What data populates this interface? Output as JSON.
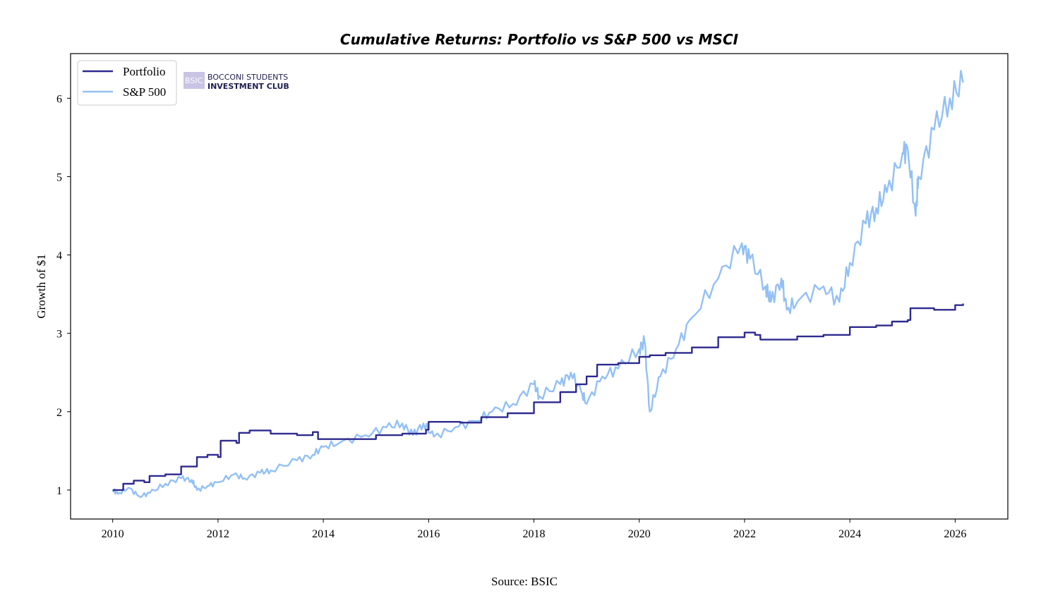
{
  "chart_data": {
    "type": "line",
    "title": "Cumulative Returns: Portfolio vs S&P 500 vs MSCI",
    "xlabel": "",
    "ylabel": "Growth of $1",
    "source": "Source: BSIC",
    "xlim": [
      2009.2,
      2027.0
    ],
    "ylim": [
      0.63,
      6.57
    ],
    "xticks": [
      2010,
      2012,
      2014,
      2016,
      2018,
      2020,
      2022,
      2024,
      2026
    ],
    "yticks": [
      1,
      2,
      3,
      4,
      5,
      6
    ],
    "grid": false,
    "legend_position": "top-left",
    "watermark": "BSIC BOCCONI STUDENTS INVESTMENT CLUB",
    "series": [
      {
        "name": "Portfolio",
        "color": "#2e2a8f",
        "step": true,
        "points": [
          [
            2010.0,
            1.0
          ],
          [
            2010.2,
            1.08
          ],
          [
            2010.4,
            1.12
          ],
          [
            2010.6,
            1.1
          ],
          [
            2010.7,
            1.18
          ],
          [
            2011.0,
            1.2
          ],
          [
            2011.3,
            1.3
          ],
          [
            2011.6,
            1.42
          ],
          [
            2011.8,
            1.45
          ],
          [
            2012.0,
            1.42
          ],
          [
            2012.05,
            1.63
          ],
          [
            2012.35,
            1.6
          ],
          [
            2012.4,
            1.73
          ],
          [
            2012.6,
            1.76
          ],
          [
            2013.0,
            1.72
          ],
          [
            2013.5,
            1.7
          ],
          [
            2013.8,
            1.74
          ],
          [
            2013.9,
            1.65
          ],
          [
            2014.5,
            1.65
          ],
          [
            2015.0,
            1.7
          ],
          [
            2015.5,
            1.72
          ],
          [
            2015.95,
            1.77
          ],
          [
            2016.0,
            1.87
          ],
          [
            2016.6,
            1.86
          ],
          [
            2017.0,
            1.93
          ],
          [
            2017.5,
            1.98
          ],
          [
            2018.0,
            2.12
          ],
          [
            2018.5,
            2.25
          ],
          [
            2018.8,
            2.35
          ],
          [
            2019.0,
            2.45
          ],
          [
            2019.2,
            2.6
          ],
          [
            2019.6,
            2.62
          ],
          [
            2020.0,
            2.7
          ],
          [
            2020.2,
            2.72
          ],
          [
            2020.5,
            2.75
          ],
          [
            2021.0,
            2.82
          ],
          [
            2021.5,
            2.95
          ],
          [
            2022.0,
            3.01
          ],
          [
            2022.2,
            2.98
          ],
          [
            2022.3,
            2.92
          ],
          [
            2023.0,
            2.96
          ],
          [
            2023.5,
            2.98
          ],
          [
            2024.0,
            3.08
          ],
          [
            2024.5,
            3.1
          ],
          [
            2024.8,
            3.15
          ],
          [
            2025.1,
            3.17
          ],
          [
            2025.15,
            3.32
          ],
          [
            2025.6,
            3.3
          ],
          [
            2026.0,
            3.36
          ],
          [
            2026.15,
            3.38
          ]
        ]
      },
      {
        "name": "S&P 500",
        "color": "#93c0f5",
        "step": false,
        "points": [
          [
            2010.0,
            1.0
          ],
          [
            2010.1,
            0.95
          ],
          [
            2010.3,
            1.03
          ],
          [
            2010.5,
            0.92
          ],
          [
            2010.7,
            0.96
          ],
          [
            2011.0,
            1.08
          ],
          [
            2011.3,
            1.15
          ],
          [
            2011.5,
            1.13
          ],
          [
            2011.6,
            1.0
          ],
          [
            2011.8,
            1.05
          ],
          [
            2012.0,
            1.1
          ],
          [
            2012.3,
            1.2
          ],
          [
            2012.5,
            1.15
          ],
          [
            2012.8,
            1.22
          ],
          [
            2013.0,
            1.25
          ],
          [
            2013.5,
            1.38
          ],
          [
            2013.8,
            1.45
          ],
          [
            2014.0,
            1.55
          ],
          [
            2014.3,
            1.6
          ],
          [
            2014.8,
            1.7
          ],
          [
            2015.2,
            1.8
          ],
          [
            2015.5,
            1.85
          ],
          [
            2015.7,
            1.7
          ],
          [
            2015.9,
            1.85
          ],
          [
            2016.1,
            1.68
          ],
          [
            2016.5,
            1.8
          ],
          [
            2016.9,
            1.88
          ],
          [
            2017.2,
            2.0
          ],
          [
            2017.6,
            2.1
          ],
          [
            2018.0,
            2.35
          ],
          [
            2018.1,
            2.2
          ],
          [
            2018.5,
            2.35
          ],
          [
            2018.7,
            2.5
          ],
          [
            2018.9,
            2.25
          ],
          [
            2019.0,
            2.1
          ],
          [
            2019.3,
            2.45
          ],
          [
            2019.6,
            2.55
          ],
          [
            2020.0,
            2.8
          ],
          [
            2020.1,
            2.9
          ],
          [
            2020.2,
            2.0
          ],
          [
            2020.4,
            2.45
          ],
          [
            2020.7,
            2.8
          ],
          [
            2021.0,
            3.2
          ],
          [
            2021.5,
            3.7
          ],
          [
            2021.95,
            4.15
          ],
          [
            2022.1,
            3.95
          ],
          [
            2022.4,
            3.6
          ],
          [
            2022.5,
            3.4
          ],
          [
            2022.7,
            3.7
          ],
          [
            2022.8,
            3.3
          ],
          [
            2023.0,
            3.4
          ],
          [
            2023.5,
            3.6
          ],
          [
            2023.8,
            3.4
          ],
          [
            2024.0,
            3.9
          ],
          [
            2024.3,
            4.4
          ],
          [
            2024.5,
            4.6
          ],
          [
            2024.7,
            4.8
          ],
          [
            2025.0,
            5.3
          ],
          [
            2025.1,
            5.35
          ],
          [
            2025.25,
            4.5
          ],
          [
            2025.3,
            5.0
          ],
          [
            2025.6,
            5.6
          ],
          [
            2025.9,
            6.0
          ],
          [
            2026.15,
            6.2
          ]
        ]
      }
    ]
  }
}
